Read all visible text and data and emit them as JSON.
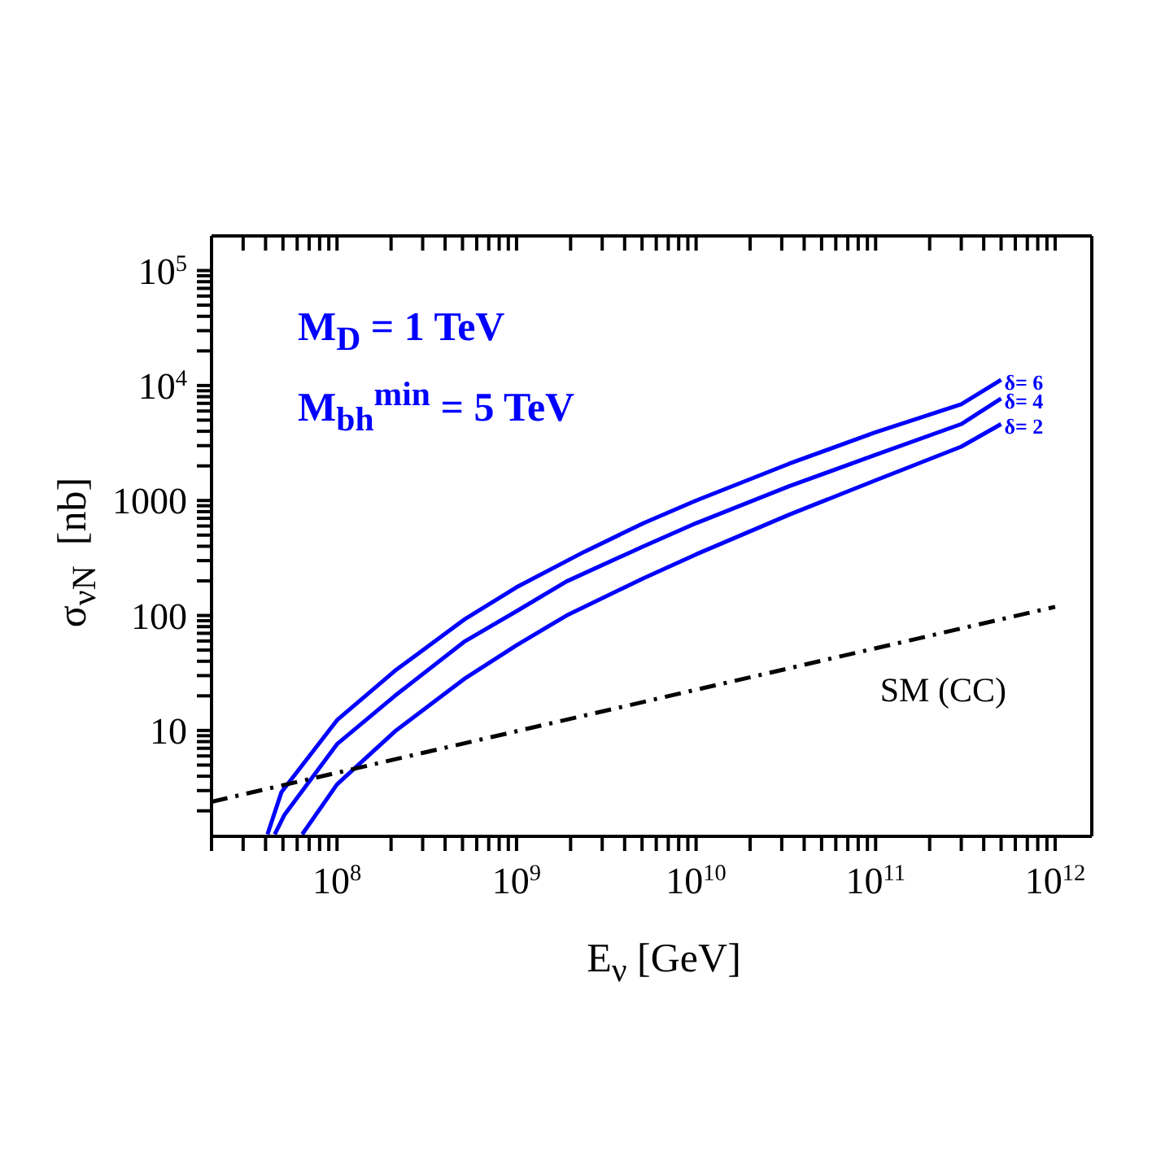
{
  "chart_data": {
    "type": "line",
    "xlabel": "E$_{ν}$ [GeV]",
    "ylabel": "σ$_{νN}$  [nb]",
    "log": "xy",
    "xlim": [
      20000000.0,
      1600000000000.0
    ],
    "ylim": [
      1.2,
      200000.0
    ],
    "xticks": [
      {
        "value": 20000000.0,
        "label": null
      },
      {
        "value": 30000000.0,
        "label": null
      },
      {
        "value": 40000000.0,
        "label": null
      },
      {
        "value": 50000000.0,
        "label": null
      },
      {
        "value": 60000000.0,
        "label": null
      },
      {
        "value": 70000000.0,
        "label": null
      },
      {
        "value": 80000000.0,
        "label": null
      },
      {
        "value": 90000000.0,
        "label": null
      },
      {
        "value": 100000000.0,
        "label": "10$^{8}$"
      },
      {
        "value": 200000000.0,
        "label": null
      },
      {
        "value": 300000000.0,
        "label": null
      },
      {
        "value": 400000000.0,
        "label": null
      },
      {
        "value": 500000000.0,
        "label": null
      },
      {
        "value": 600000000.0,
        "label": null
      },
      {
        "value": 700000000.0,
        "label": null
      },
      {
        "value": 800000000.0,
        "label": null
      },
      {
        "value": 900000000.0,
        "label": null
      },
      {
        "value": 1000000000.0,
        "label": "10$^{9}$"
      },
      {
        "value": 2000000000.0,
        "label": null
      },
      {
        "value": 3000000000.0,
        "label": null
      },
      {
        "value": 4000000000.0,
        "label": null
      },
      {
        "value": 5000000000.0,
        "label": null
      },
      {
        "value": 6000000000.0,
        "label": null
      },
      {
        "value": 7000000000.0,
        "label": null
      },
      {
        "value": 8000000000.0,
        "label": null
      },
      {
        "value": 9000000000.0,
        "label": null
      },
      {
        "value": 10000000000.0,
        "label": "10$^{10}$"
      },
      {
        "value": 20000000000.0,
        "label": null
      },
      {
        "value": 30000000000.0,
        "label": null
      },
      {
        "value": 40000000000.0,
        "label": null
      },
      {
        "value": 50000000000.0,
        "label": null
      },
      {
        "value": 60000000000.0,
        "label": null
      },
      {
        "value": 70000000000.0,
        "label": null
      },
      {
        "value": 80000000000.0,
        "label": null
      },
      {
        "value": 90000000000.0,
        "label": null
      },
      {
        "value": 100000000000.0,
        "label": "10$^{11}$"
      },
      {
        "value": 200000000000.0,
        "label": null
      },
      {
        "value": 300000000000.0,
        "label": null
      },
      {
        "value": 400000000000.0,
        "label": null
      },
      {
        "value": 500000000000.0,
        "label": null
      },
      {
        "value": 600000000000.0,
        "label": null
      },
      {
        "value": 700000000000.0,
        "label": null
      },
      {
        "value": 800000000000.0,
        "label": null
      },
      {
        "value": 900000000000.0,
        "label": null
      },
      {
        "value": 1000000000000.0,
        "label": "10$^{12}$"
      }
    ],
    "yticks": [
      {
        "value": 2,
        "label": null
      },
      {
        "value": 3,
        "label": null
      },
      {
        "value": 4,
        "label": null
      },
      {
        "value": 5,
        "label": null
      },
      {
        "value": 6,
        "label": null
      },
      {
        "value": 7,
        "label": null
      },
      {
        "value": 8,
        "label": null
      },
      {
        "value": 9,
        "label": null
      },
      10,
      {
        "value": 20,
        "label": null
      },
      {
        "value": 30,
        "label": null
      },
      {
        "value": 40,
        "label": null
      },
      {
        "value": 50,
        "label": null
      },
      {
        "value": 60,
        "label": null
      },
      {
        "value": 70,
        "label": null
      },
      {
        "value": 80,
        "label": null
      },
      {
        "value": 90,
        "label": null
      },
      100,
      {
        "value": 200,
        "label": null
      },
      {
        "value": 300,
        "label": null
      },
      {
        "value": 400,
        "label": null
      },
      {
        "value": 500,
        "label": null
      },
      {
        "value": 600,
        "label": null
      },
      {
        "value": 700,
        "label": null
      },
      {
        "value": 800,
        "label": null
      },
      {
        "value": 900,
        "label": null
      },
      1000,
      {
        "value": 2000,
        "label": null
      },
      {
        "value": 3000,
        "label": null
      },
      {
        "value": 4000,
        "label": null
      },
      {
        "value": 5000,
        "label": null
      },
      {
        "value": 6000,
        "label": null
      },
      {
        "value": 7000,
        "label": null
      },
      {
        "value": 8000,
        "label": null
      },
      {
        "value": 9000,
        "label": null
      },
      {
        "value": 10000,
        "label": "10$^{4}$"
      },
      {
        "value": 20000,
        "label": null
      },
      {
        "value": 30000,
        "label": null
      },
      {
        "value": 40000,
        "label": null
      },
      {
        "value": 50000,
        "label": null
      },
      {
        "value": 60000,
        "label": null
      },
      {
        "value": 70000,
        "label": null
      },
      {
        "value": 80000,
        "label": null
      },
      {
        "value": 90000,
        "label": null
      },
      {
        "value": 100000,
        "label": "10$^{5}$"
      }
    ],
    "grid": false,
    "marker": "none",
    "series": [
      {
        "name": "δ= 6",
        "color": "#0000ff",
        "line_style": "solid",
        "x": [
          41000000.0,
          49000000.0,
          100000000.0,
          210000000.0,
          510000000.0,
          1000000000.0,
          2400000000.0,
          5100000000.0,
          10000000000.0,
          33000000000.0,
          99000000000.0,
          300000000000.0,
          500000000000.0
        ],
        "values": [
          1.25,
          2.9,
          12.3,
          33,
          92,
          176,
          360,
          635,
          1000,
          2090,
          3900,
          6870,
          11200
        ]
      },
      {
        "name": "δ= 4",
        "color": "#0000ff",
        "line_style": "solid",
        "x": [
          45000000.0,
          51000000.0,
          100000000.0,
          210000000.0,
          510000000.0,
          1000000000.0,
          1900000000.0,
          5100000000.0,
          10000000000.0,
          33000000000.0,
          99000000000.0,
          300000000000.0,
          500000000000.0
        ],
        "values": [
          1.25,
          1.85,
          7.6,
          20,
          59,
          109,
          198,
          400,
          635,
          1330,
          2480,
          4620,
          7700
        ]
      },
      {
        "name": "δ= 2",
        "color": "#0000ff",
        "line_style": "solid",
        "x": [
          64000000.0,
          100000000.0,
          210000000.0,
          510000000.0,
          1000000000.0,
          1900000000.0,
          5100000000.0,
          10000000000.0,
          33000000000.0,
          99000000000.0,
          300000000000.0,
          500000000000.0
        ],
        "values": [
          1.25,
          3.4,
          9.8,
          28,
          55,
          100,
          211,
          340,
          753,
          1490,
          2940,
          4620
        ]
      },
      {
        "name": "SM (CC)",
        "color": "#000000",
        "line_style": "dashed",
        "x": [
          20000000.0,
          1000000000000.0
        ],
        "values": [
          2.4,
          119
        ]
      }
    ],
    "annotations": [
      "M$_{D}$ = 1 TeV",
      "M$_{bh}$$^{min}$ = 5 TeV"
    ]
  }
}
